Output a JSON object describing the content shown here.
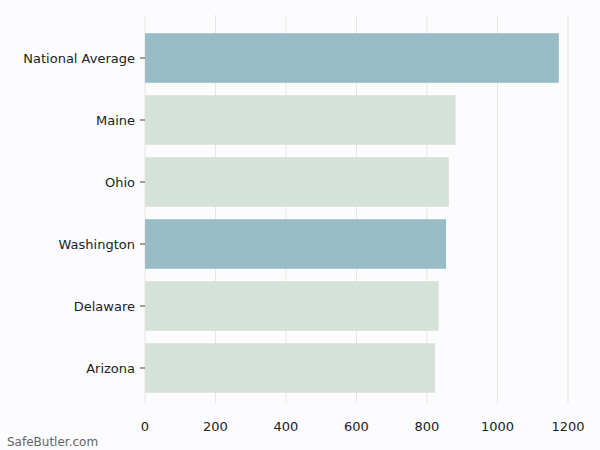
{
  "chart_data": {
    "type": "bar",
    "orientation": "horizontal",
    "categories": [
      "National Average",
      "Maine",
      "Ohio",
      "Washington",
      "Delaware",
      "Arizona"
    ],
    "values": [
      1174,
      881,
      862,
      854,
      833,
      823
    ],
    "colors": [
      "#97bcc6",
      "#d4e2d9",
      "#d4e2d9",
      "#97bcc6",
      "#d4e2d9",
      "#d4e2d9"
    ],
    "xlim": [
      0,
      1200
    ],
    "xticks": [
      0,
      200,
      400,
      600,
      800,
      1000,
      1200
    ],
    "grid": true,
    "annotations": [
      "SafeButler.com"
    ]
  }
}
